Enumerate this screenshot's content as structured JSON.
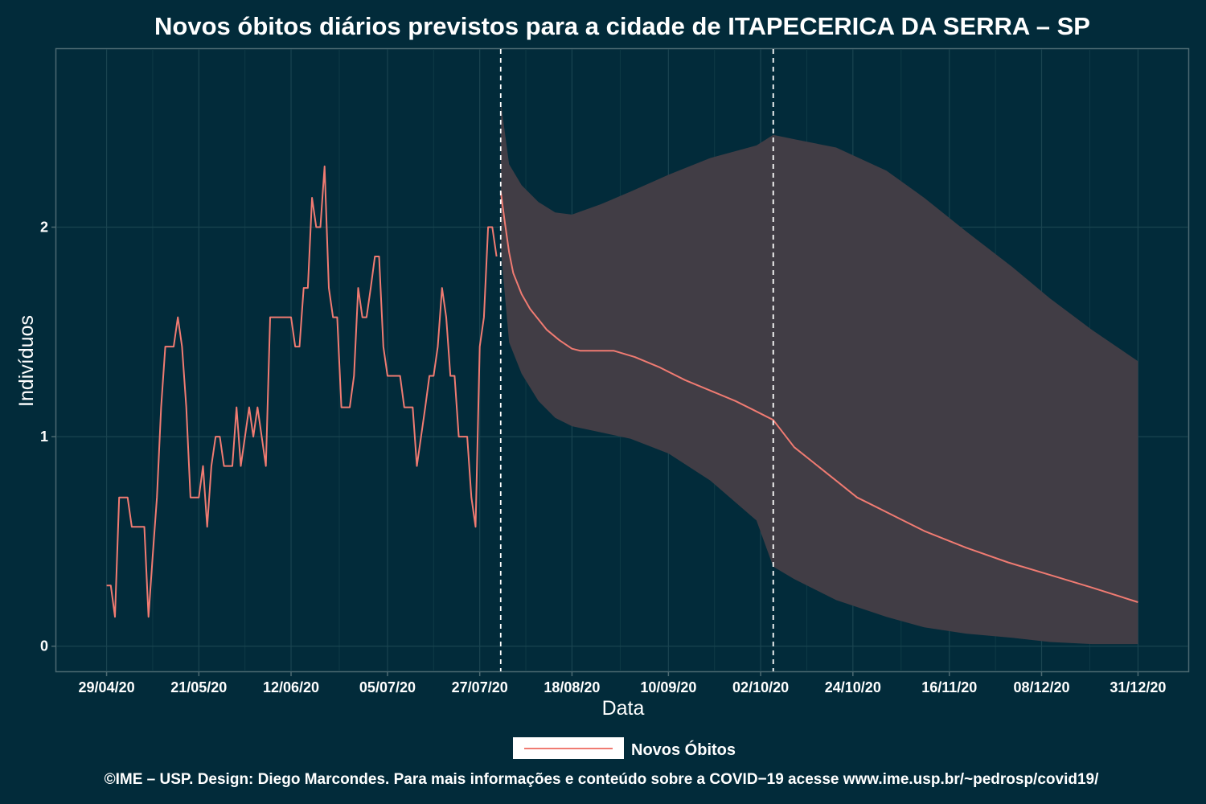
{
  "chart_data": {
    "type": "line",
    "title": "Novos óbitos diários previstos para a cidade de ITAPECERICA DA SERRA – SP",
    "xlabel": "Data",
    "ylabel": "Indivíduos",
    "x_ticks": [
      "29/04/20",
      "21/05/20",
      "12/06/20",
      "05/07/20",
      "27/07/20",
      "18/08/20",
      "10/09/20",
      "02/10/20",
      "24/10/20",
      "16/11/20",
      "08/12/20",
      "31/12/20"
    ],
    "y_ticks": [
      "0",
      "1",
      "2"
    ],
    "y_range": [
      -0.12,
      2.85
    ],
    "x_range": [
      "2020-04-17",
      "2021-01-12"
    ],
    "grid": true,
    "legend_position": "bottom",
    "colors": {
      "line": "#f07b72",
      "band": "#413d45",
      "background": "#022b3a",
      "grid": "#1a4450",
      "vline": "#ffffff"
    },
    "vlines": [
      "2020-08-01",
      "2020-10-05"
    ],
    "series": [
      {
        "name": "Novos Óbitos",
        "kind": "observed",
        "x": [
          "2020-04-29",
          "2020-04-30",
          "2020-05-01",
          "2020-05-02",
          "2020-05-03",
          "2020-05-04",
          "2020-05-05",
          "2020-05-06",
          "2020-05-07",
          "2020-05-08",
          "2020-05-09",
          "2020-05-10",
          "2020-05-11",
          "2020-05-12",
          "2020-05-13",
          "2020-05-14",
          "2020-05-15",
          "2020-05-16",
          "2020-05-17",
          "2020-05-18",
          "2020-05-19",
          "2020-05-20",
          "2020-05-21",
          "2020-05-22",
          "2020-05-23",
          "2020-05-24",
          "2020-05-25",
          "2020-05-26",
          "2020-05-27",
          "2020-05-28",
          "2020-05-29",
          "2020-05-30",
          "2020-05-31",
          "2020-06-01",
          "2020-06-02",
          "2020-06-03",
          "2020-06-04",
          "2020-06-05",
          "2020-06-06",
          "2020-06-07",
          "2020-06-08",
          "2020-06-09",
          "2020-06-10",
          "2020-06-11",
          "2020-06-12",
          "2020-06-13",
          "2020-06-14",
          "2020-06-15",
          "2020-06-16",
          "2020-06-17",
          "2020-06-18",
          "2020-06-19",
          "2020-06-20",
          "2020-06-21",
          "2020-06-22",
          "2020-06-23",
          "2020-06-24",
          "2020-06-25",
          "2020-06-26",
          "2020-06-27",
          "2020-06-28",
          "2020-06-29",
          "2020-06-30",
          "2020-07-01",
          "2020-07-02",
          "2020-07-03",
          "2020-07-04",
          "2020-07-05",
          "2020-07-06",
          "2020-07-07",
          "2020-07-08",
          "2020-07-09",
          "2020-07-10",
          "2020-07-11",
          "2020-07-12",
          "2020-07-13",
          "2020-07-14",
          "2020-07-15",
          "2020-07-16",
          "2020-07-17",
          "2020-07-18",
          "2020-07-19",
          "2020-07-20",
          "2020-07-21",
          "2020-07-22",
          "2020-07-23",
          "2020-07-24",
          "2020-07-25",
          "2020-07-26",
          "2020-07-27",
          "2020-07-28",
          "2020-07-29",
          "2020-07-30",
          "2020-07-31"
        ],
        "y": [
          0.29,
          0.29,
          0.14,
          0.71,
          0.71,
          0.71,
          0.57,
          0.57,
          0.57,
          0.57,
          0.14,
          0.43,
          0.71,
          1.14,
          1.43,
          1.43,
          1.43,
          1.57,
          1.43,
          1.14,
          0.71,
          0.71,
          0.71,
          0.86,
          0.57,
          0.86,
          1.0,
          1.0,
          0.86,
          0.86,
          0.86,
          1.14,
          0.86,
          1.0,
          1.14,
          1.0,
          1.14,
          1.0,
          0.86,
          1.57,
          1.57,
          1.57,
          1.57,
          1.57,
          1.57,
          1.43,
          1.43,
          1.71,
          1.71,
          2.14,
          2.0,
          2.0,
          2.29,
          1.71,
          1.57,
          1.57,
          1.14,
          1.14,
          1.14,
          1.29,
          1.71,
          1.57,
          1.57,
          1.71,
          1.86,
          1.86,
          1.43,
          1.29,
          1.29,
          1.29,
          1.29,
          1.14,
          1.14,
          1.14,
          0.86,
          1.0,
          1.14,
          1.29,
          1.29,
          1.43,
          1.71,
          1.57,
          1.29,
          1.29,
          1.0,
          1.0,
          1.0,
          0.71,
          0.57,
          1.43,
          1.57,
          2.0,
          2.0,
          1.86
        ]
      },
      {
        "name": "Novos Óbitos",
        "kind": "forecast",
        "x": [
          "2020-08-01",
          "2020-08-02",
          "2020-08-03",
          "2020-08-04",
          "2020-08-06",
          "2020-08-08",
          "2020-08-10",
          "2020-08-12",
          "2020-08-15",
          "2020-08-18",
          "2020-08-20",
          "2020-08-24",
          "2020-08-28",
          "2020-09-02",
          "2020-09-08",
          "2020-09-14",
          "2020-09-20",
          "2020-09-26",
          "2020-09-30",
          "2020-10-05",
          "2020-10-10",
          "2020-10-15",
          "2020-10-20",
          "2020-10-25",
          "2020-10-30",
          "2020-11-05",
          "2020-11-10",
          "2020-11-15",
          "2020-11-20",
          "2020-11-30",
          "2020-12-10",
          "2020-12-20",
          "2020-12-31"
        ],
        "y": [
          2.17,
          2.02,
          1.88,
          1.78,
          1.68,
          1.61,
          1.56,
          1.51,
          1.46,
          1.42,
          1.41,
          1.41,
          1.41,
          1.38,
          1.33,
          1.27,
          1.22,
          1.17,
          1.13,
          1.08,
          0.95,
          0.87,
          0.79,
          0.71,
          0.66,
          0.6,
          0.55,
          0.51,
          0.47,
          0.4,
          0.34,
          0.28,
          0.21
        ]
      }
    ],
    "band": {
      "kind": "prediction interval",
      "x": [
        "2020-08-01",
        "2020-08-03",
        "2020-08-06",
        "2020-08-10",
        "2020-08-14",
        "2020-08-18",
        "2020-08-25",
        "2020-09-01",
        "2020-09-10",
        "2020-09-20",
        "2020-10-01",
        "2020-10-05",
        "2020-10-10",
        "2020-10-20",
        "2020-11-01",
        "2020-11-10",
        "2020-11-20",
        "2020-12-01",
        "2020-12-10",
        "2020-12-20",
        "2020-12-31"
      ],
      "upper": [
        2.6,
        2.3,
        2.2,
        2.12,
        2.07,
        2.06,
        2.11,
        2.17,
        2.25,
        2.33,
        2.39,
        2.44,
        2.42,
        2.38,
        2.27,
        2.14,
        1.98,
        1.81,
        1.66,
        1.51,
        1.36
      ],
      "lower": [
        1.9,
        1.45,
        1.3,
        1.17,
        1.09,
        1.05,
        1.02,
        0.99,
        0.92,
        0.79,
        0.6,
        0.38,
        0.32,
        0.22,
        0.14,
        0.09,
        0.06,
        0.04,
        0.02,
        0.01,
        0.01
      ]
    }
  },
  "legend": {
    "label": "Novos Óbitos"
  },
  "caption": "©IME – USP. Design: Diego Marcondes. Para mais informações e conteúdo sobre a COVID−19 acesse www.ime.usp.br/~pedrosp/covid19/"
}
